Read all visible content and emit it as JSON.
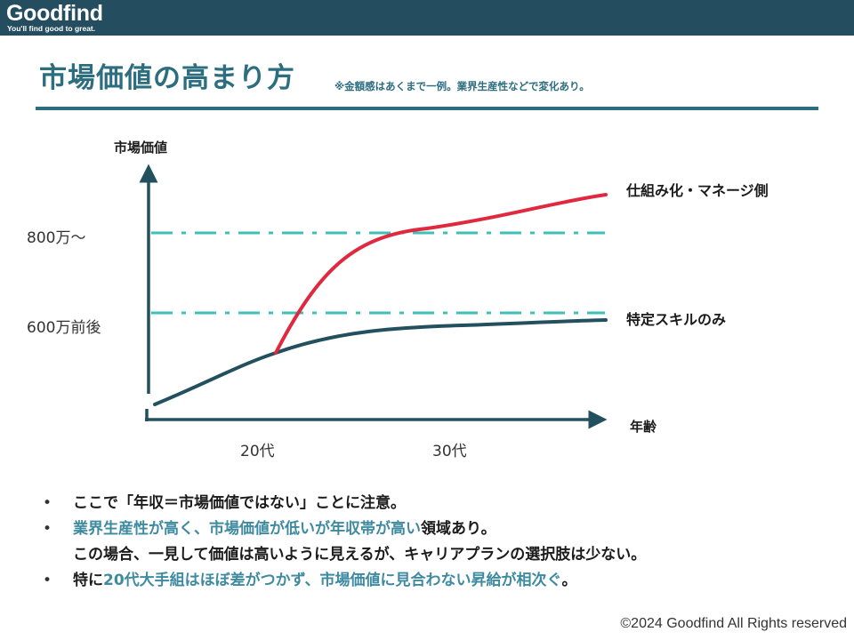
{
  "header": {
    "logo": "Goodfind",
    "tagline": "You'll find good to great."
  },
  "slide": {
    "title": "市場価値の高まり方",
    "note": "※金額感はあくまで一例。業界生産性などで変化あり。"
  },
  "diagram": {
    "y_axis_label": "市場価値",
    "x_axis_label": "年齢",
    "levels": [
      {
        "label": "800万〜",
        "value": 800
      },
      {
        "label": "600万前後",
        "value": 600
      }
    ],
    "x_ticks": [
      "20代",
      "30代"
    ],
    "curves": [
      {
        "name": "仕組み化・マネージ側",
        "color": "#e0283e"
      },
      {
        "name": "特定スキルのみ",
        "color": "#23505e"
      }
    ],
    "colors": {
      "guide_line": "#3fc0b6",
      "axis": "#23505e"
    }
  },
  "bullets": [
    {
      "parts": [
        {
          "text": "ここで「年収＝市場価値ではない」ことに注意。",
          "tone": "dark"
        }
      ]
    },
    {
      "parts": [
        {
          "text": "業界生産性が高く、市場価値が低いが年収帯が高い",
          "tone": "teal"
        },
        {
          "text": "領域あり。",
          "tone": "dark"
        }
      ]
    },
    {
      "parts": [
        {
          "text": "この場合、一見して価値は高いように見えるが、キャリアプランの選択肢は少ない。",
          "tone": "dark"
        }
      ],
      "bullet": false
    },
    {
      "parts": [
        {
          "text": "特に",
          "tone": "dark"
        },
        {
          "text": "20代大手組はほぼ差がつかず、市場価値に見合わない昇給が相次ぐ",
          "tone": "teal"
        },
        {
          "text": "。",
          "tone": "dark"
        }
      ]
    }
  ],
  "bullet_symbol": "•",
  "footer": {
    "copyright": "©2024 Goodfind All Rights reserved"
  }
}
